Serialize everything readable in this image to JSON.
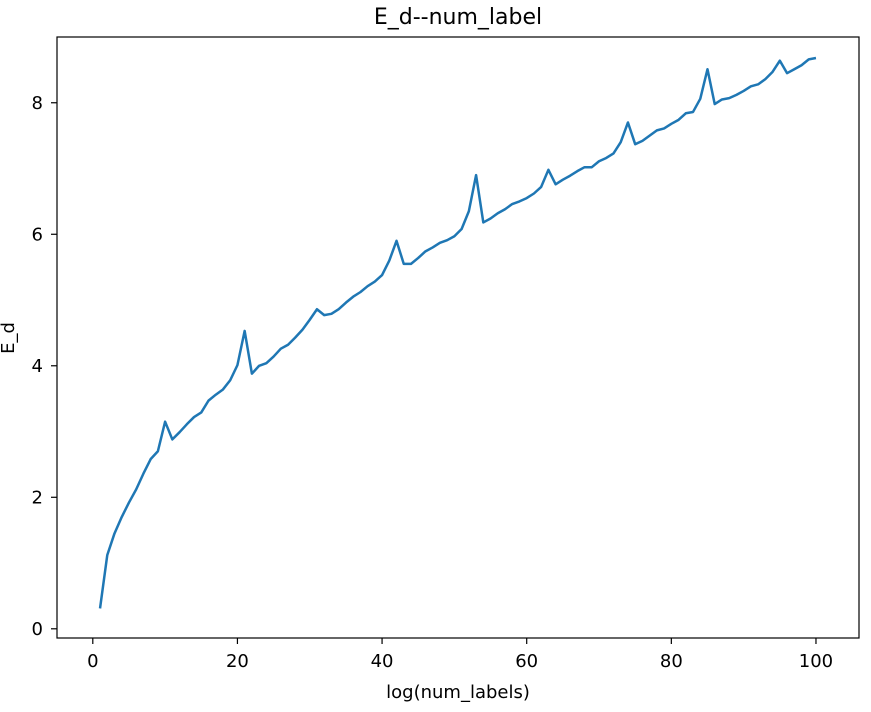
{
  "chart_data": {
    "type": "line",
    "title": "E_d--num_label",
    "xlabel": "log(num_labels)",
    "ylabel": "E_d",
    "xlim": [
      -4.95,
      105.95
    ],
    "ylim": [
      -0.14,
      9.0
    ],
    "xticks": [
      0,
      20,
      40,
      60,
      80,
      100
    ],
    "yticks": [
      0,
      2,
      4,
      6,
      8
    ],
    "grid": false,
    "legend": "none",
    "series": [
      {
        "color": "#1f77b4",
        "x": [
          1,
          2,
          3,
          4,
          5,
          6,
          7,
          8,
          9,
          10,
          11,
          12,
          13,
          14,
          15,
          16,
          17,
          18,
          19,
          20,
          21,
          22,
          23,
          24,
          25,
          26,
          27,
          28,
          29,
          30,
          31,
          32,
          33,
          34,
          35,
          36,
          37,
          38,
          39,
          40,
          41,
          42,
          43,
          44,
          45,
          46,
          47,
          48,
          49,
          50,
          51,
          52,
          53,
          54,
          55,
          56,
          57,
          58,
          59,
          60,
          61,
          62,
          63,
          64,
          65,
          66,
          67,
          68,
          69,
          70,
          71,
          72,
          73,
          74,
          75,
          76,
          77,
          78,
          79,
          80,
          81,
          82,
          83,
          84,
          85,
          86,
          87,
          88,
          89,
          90,
          91,
          92,
          93,
          94,
          95,
          96,
          97,
          98,
          99,
          100
        ],
        "y": [
          0.31,
          1.12,
          1.45,
          1.7,
          1.92,
          2.12,
          2.36,
          2.58,
          2.7,
          3.15,
          2.88,
          2.99,
          3.11,
          3.22,
          3.29,
          3.47,
          3.56,
          3.64,
          3.78,
          4.01,
          4.53,
          3.88,
          4.0,
          4.04,
          4.14,
          4.26,
          4.32,
          4.43,
          4.55,
          4.7,
          4.86,
          4.77,
          4.79,
          4.86,
          4.96,
          5.05,
          5.12,
          5.21,
          5.28,
          5.38,
          5.6,
          5.9,
          5.55,
          5.55,
          5.64,
          5.74,
          5.8,
          5.87,
          5.91,
          5.97,
          6.08,
          6.35,
          6.9,
          6.18,
          6.24,
          6.32,
          6.38,
          6.46,
          6.5,
          6.55,
          6.62,
          6.72,
          6.98,
          6.76,
          6.83,
          6.89,
          6.96,
          7.02,
          7.02,
          7.11,
          7.16,
          7.23,
          7.4,
          7.7,
          7.37,
          7.42,
          7.5,
          7.58,
          7.61,
          7.68,
          7.74,
          7.84,
          7.86,
          8.06,
          8.51,
          7.98,
          8.05,
          8.07,
          8.12,
          8.18,
          8.25,
          8.28,
          8.36,
          8.47,
          8.64,
          8.45,
          8.51,
          8.57,
          8.66,
          8.68
        ]
      }
    ]
  }
}
